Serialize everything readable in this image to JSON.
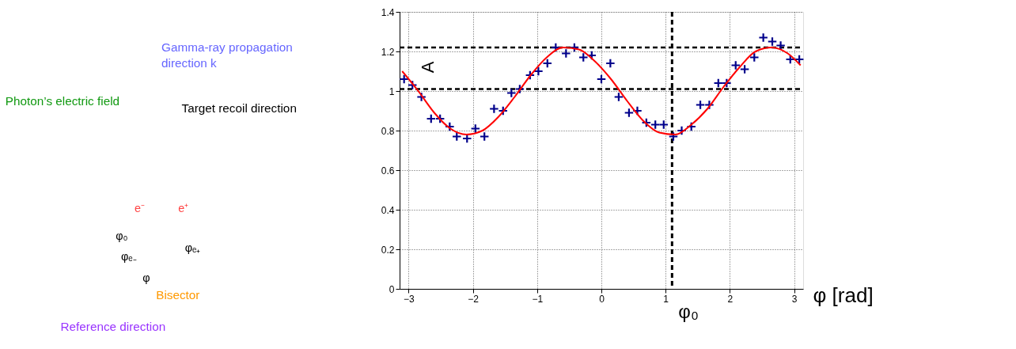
{
  "chart_data": [
    {
      "type": "other",
      "annotations": [
        "Gamma-ray propagation",
        "direction k",
        "Photon’s electric field",
        "Target recoil direction",
        "e⁻",
        "e⁺",
        "φ₀",
        "φₑ₋",
        "φₑ₊",
        "φ",
        "Bisector",
        "Reference direction"
      ]
    },
    {
      "type": "scatter",
      "xlabel": "φ [rad]",
      "xlim": [
        -3.14,
        3.14
      ],
      "xticks": [
        -3,
        -2,
        -1,
        0,
        1,
        2,
        3
      ],
      "ylim": [
        0,
        1.4
      ],
      "yticks": [
        0,
        0.2,
        0.4,
        0.6,
        0.8,
        1,
        1.2,
        1.4
      ],
      "grid": true,
      "series": [
        {
          "type": "scatter",
          "color": "#00008b",
          "marker": "cross",
          "x": [
            -3.07,
            -2.94,
            -2.8,
            -2.65,
            -2.51,
            -2.36,
            -2.25,
            -2.09,
            -1.96,
            -1.82,
            -1.67,
            -1.53,
            -1.4,
            -1.27,
            -1.11,
            -0.98,
            -0.84,
            -0.71,
            -0.55,
            -0.42,
            -0.28,
            -0.15,
            0.0,
            0.14,
            0.27,
            0.43,
            0.56,
            0.7,
            0.84,
            0.97,
            1.12,
            1.25,
            1.4,
            1.54,
            1.68,
            1.82,
            1.95,
            2.09,
            2.23,
            2.38,
            2.52,
            2.66,
            2.79,
            2.94,
            3.08
          ],
          "values": [
            1.06,
            1.03,
            0.97,
            0.86,
            0.86,
            0.82,
            0.77,
            0.76,
            0.81,
            0.77,
            0.91,
            0.9,
            0.99,
            1.01,
            1.08,
            1.1,
            1.14,
            1.22,
            1.19,
            1.22,
            1.17,
            1.18,
            1.06,
            1.14,
            0.97,
            0.89,
            0.9,
            0.84,
            0.83,
            0.83,
            0.77,
            0.8,
            0.82,
            0.93,
            0.93,
            1.04,
            1.04,
            1.13,
            1.11,
            1.17,
            1.27,
            1.25,
            1.23,
            1.16,
            1.16
          ]
        },
        {
          "type": "line",
          "color": "#ff0000",
          "line_style": "solid",
          "x": [
            -3.1,
            -2.85,
            -2.6,
            -2.35,
            -2.1,
            -1.85,
            -1.6,
            -1.35,
            -1.1,
            -0.85,
            -0.6,
            -0.35,
            -0.1,
            0.15,
            0.4,
            0.65,
            0.9,
            1.15,
            1.4,
            1.65,
            1.9,
            2.15,
            2.4,
            2.65,
            2.9,
            3.1
          ],
          "values": [
            1.1,
            1.0,
            0.89,
            0.81,
            0.78,
            0.8,
            0.87,
            0.97,
            1.08,
            1.17,
            1.22,
            1.21,
            1.15,
            1.06,
            0.95,
            0.85,
            0.79,
            0.78,
            0.83,
            0.91,
            1.02,
            1.12,
            1.2,
            1.22,
            1.19,
            1.13
          ]
        }
      ],
      "ref_lines": [
        {
          "axis": "y",
          "value": 1.22,
          "line_style": "dashed"
        },
        {
          "axis": "y",
          "value": 1.01,
          "line_style": "dashed"
        },
        {
          "axis": "x",
          "value": 1.1,
          "label": "φ₀",
          "line_style": "dashed"
        }
      ],
      "annotations": [
        "A"
      ]
    }
  ]
}
